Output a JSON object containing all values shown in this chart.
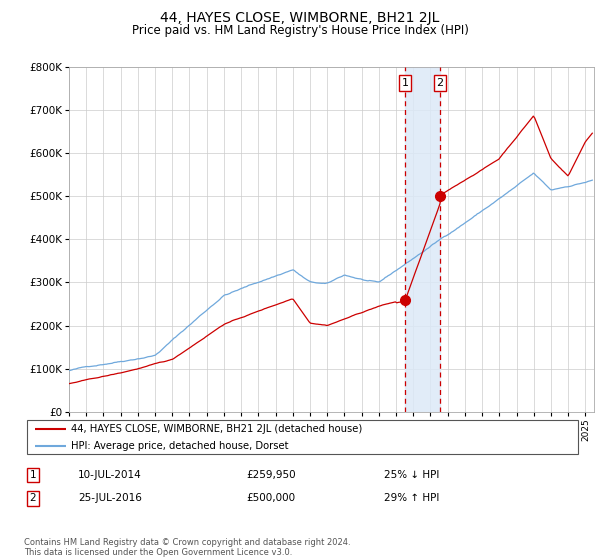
{
  "title": "44, HAYES CLOSE, WIMBORNE, BH21 2JL",
  "subtitle": "Price paid vs. HM Land Registry's House Price Index (HPI)",
  "legend_line1": "44, HAYES CLOSE, WIMBORNE, BH21 2JL (detached house)",
  "legend_line2": "HPI: Average price, detached house, Dorset",
  "transaction1_date": "10-JUL-2014",
  "transaction1_price": 259950,
  "transaction1_pct": "25% ↓ HPI",
  "transaction2_date": "25-JUL-2016",
  "transaction2_price": 500000,
  "transaction2_pct": "29% ↑ HPI",
  "footer": "Contains HM Land Registry data © Crown copyright and database right 2024.\nThis data is licensed under the Open Government Licence v3.0.",
  "hpi_color": "#6fa8dc",
  "price_color": "#cc0000",
  "marker_color": "#cc0000",
  "highlight_color": "#dce9f7",
  "vline_color": "#cc0000",
  "grid_color": "#cccccc",
  "title_fontsize": 10,
  "subtitle_fontsize": 8.5,
  "ylim": [
    0,
    800000
  ],
  "xlim_start": 1995.0,
  "xlim_end": 2025.5,
  "t1_x": 2014.52,
  "t2_x": 2016.56,
  "t1_y": 259950,
  "t2_y": 500000
}
